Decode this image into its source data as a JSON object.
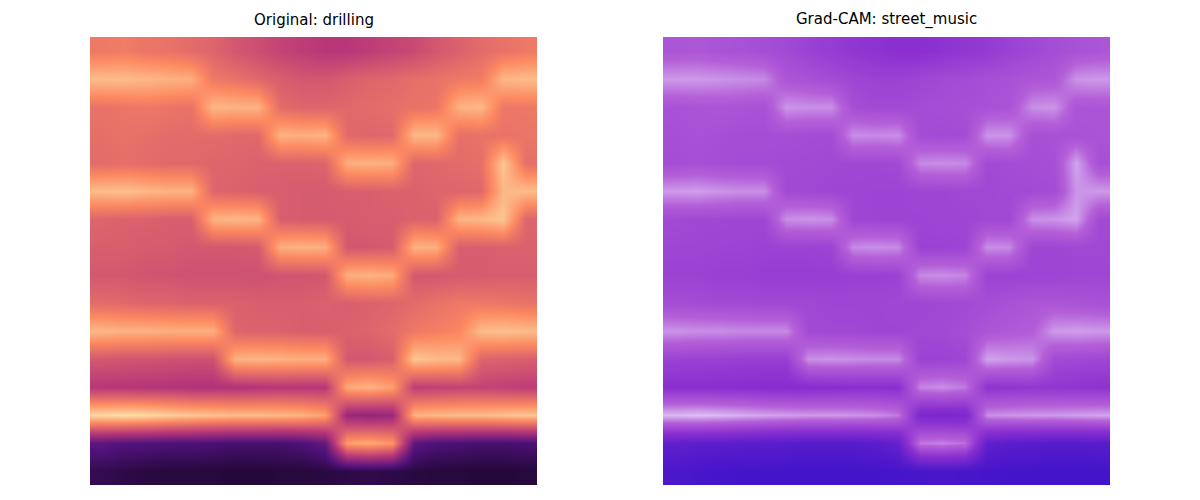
{
  "chart_data": [
    {
      "type": "heatmap",
      "title": "Original: drilling",
      "tick_labels": false,
      "zlim": [
        0,
        1
      ],
      "cells": [
        [
          0.7,
          0.71,
          0.69,
          0.68,
          0.66,
          0.64,
          0.6,
          0.57,
          0.54,
          0.52,
          0.5,
          0.5,
          0.52,
          0.54,
          0.56,
          0.6,
          0.63,
          0.66,
          0.68,
          0.7
        ],
        [
          0.86,
          0.86,
          0.85,
          0.84,
          0.83,
          0.7,
          0.68,
          0.65,
          0.62,
          0.6,
          0.6,
          0.62,
          0.64,
          0.65,
          0.67,
          0.68,
          0.7,
          0.71,
          0.85,
          0.86
        ],
        [
          0.68,
          0.69,
          0.7,
          0.69,
          0.68,
          0.85,
          0.84,
          0.84,
          0.66,
          0.64,
          0.64,
          0.65,
          0.66,
          0.67,
          0.68,
          0.69,
          0.84,
          0.85,
          0.7,
          0.7
        ],
        [
          0.67,
          0.68,
          0.67,
          0.66,
          0.66,
          0.66,
          0.65,
          0.65,
          0.84,
          0.83,
          0.84,
          0.65,
          0.64,
          0.65,
          0.85,
          0.85,
          0.67,
          0.68,
          0.68,
          0.69
        ],
        [
          0.66,
          0.67,
          0.66,
          0.65,
          0.65,
          0.64,
          0.64,
          0.63,
          0.63,
          0.63,
          0.64,
          0.83,
          0.84,
          0.83,
          0.64,
          0.65,
          0.66,
          0.67,
          0.88,
          0.67
        ],
        [
          0.86,
          0.87,
          0.85,
          0.84,
          0.84,
          0.64,
          0.63,
          0.62,
          0.62,
          0.61,
          0.61,
          0.62,
          0.62,
          0.63,
          0.63,
          0.64,
          0.64,
          0.65,
          0.85,
          0.86
        ],
        [
          0.64,
          0.63,
          0.63,
          0.62,
          0.62,
          0.84,
          0.85,
          0.84,
          0.62,
          0.61,
          0.61,
          0.61,
          0.62,
          0.62,
          0.63,
          0.63,
          0.84,
          0.85,
          0.88,
          0.64
        ],
        [
          0.62,
          0.62,
          0.61,
          0.61,
          0.6,
          0.6,
          0.6,
          0.61,
          0.83,
          0.84,
          0.83,
          0.6,
          0.6,
          0.61,
          0.84,
          0.83,
          0.62,
          0.62,
          0.63,
          0.63
        ],
        [
          0.6,
          0.6,
          0.59,
          0.59,
          0.58,
          0.58,
          0.58,
          0.58,
          0.59,
          0.59,
          0.6,
          0.83,
          0.84,
          0.82,
          0.6,
          0.6,
          0.61,
          0.61,
          0.62,
          0.62
        ],
        [
          0.66,
          0.65,
          0.64,
          0.64,
          0.63,
          0.63,
          0.63,
          0.62,
          0.62,
          0.62,
          0.63,
          0.62,
          0.63,
          0.64,
          0.66,
          0.68,
          0.7,
          0.7,
          0.69,
          0.68
        ],
        [
          0.85,
          0.84,
          0.84,
          0.83,
          0.83,
          0.83,
          0.64,
          0.63,
          0.63,
          0.62,
          0.62,
          0.63,
          0.64,
          0.66,
          0.7,
          0.72,
          0.74,
          0.86,
          0.87,
          0.86
        ],
        [
          0.6,
          0.59,
          0.59,
          0.58,
          0.58,
          0.58,
          0.84,
          0.85,
          0.84,
          0.83,
          0.83,
          0.6,
          0.6,
          0.62,
          0.88,
          0.86,
          0.85,
          0.64,
          0.63,
          0.62
        ],
        [
          0.5,
          0.5,
          0.49,
          0.49,
          0.48,
          0.48,
          0.48,
          0.49,
          0.5,
          0.5,
          0.5,
          0.82,
          0.84,
          0.8,
          0.52,
          0.53,
          0.54,
          0.54,
          0.53,
          0.52
        ],
        [
          0.92,
          0.93,
          0.92,
          0.9,
          0.88,
          0.87,
          0.86,
          0.86,
          0.85,
          0.84,
          0.8,
          0.42,
          0.4,
          0.42,
          0.84,
          0.85,
          0.86,
          0.86,
          0.87,
          0.88
        ],
        [
          0.28,
          0.26,
          0.25,
          0.24,
          0.24,
          0.23,
          0.22,
          0.22,
          0.22,
          0.24,
          0.3,
          0.8,
          0.82,
          0.78,
          0.28,
          0.24,
          0.23,
          0.22,
          0.22,
          0.23
        ],
        [
          0.16,
          0.14,
          0.13,
          0.12,
          0.12,
          0.12,
          0.11,
          0.11,
          0.12,
          0.12,
          0.13,
          0.14,
          0.15,
          0.14,
          0.13,
          0.12,
          0.12,
          0.11,
          0.11,
          0.12
        ]
      ]
    },
    {
      "type": "heatmap",
      "title": "Grad-CAM: street_music",
      "tick_labels": false,
      "zlim": [
        0,
        1
      ],
      "cells": [
        [
          0.7,
          0.71,
          0.69,
          0.68,
          0.66,
          0.64,
          0.6,
          0.57,
          0.54,
          0.52,
          0.5,
          0.5,
          0.52,
          0.54,
          0.56,
          0.6,
          0.63,
          0.66,
          0.68,
          0.7
        ],
        [
          0.86,
          0.86,
          0.85,
          0.84,
          0.83,
          0.7,
          0.68,
          0.65,
          0.62,
          0.6,
          0.6,
          0.62,
          0.64,
          0.65,
          0.67,
          0.68,
          0.7,
          0.71,
          0.85,
          0.86
        ],
        [
          0.68,
          0.69,
          0.7,
          0.69,
          0.68,
          0.85,
          0.84,
          0.84,
          0.66,
          0.64,
          0.64,
          0.65,
          0.66,
          0.67,
          0.68,
          0.69,
          0.84,
          0.85,
          0.7,
          0.7
        ],
        [
          0.67,
          0.68,
          0.67,
          0.66,
          0.66,
          0.66,
          0.65,
          0.65,
          0.84,
          0.83,
          0.84,
          0.65,
          0.64,
          0.65,
          0.85,
          0.85,
          0.67,
          0.68,
          0.68,
          0.69
        ],
        [
          0.66,
          0.67,
          0.66,
          0.65,
          0.65,
          0.64,
          0.64,
          0.63,
          0.63,
          0.63,
          0.64,
          0.83,
          0.84,
          0.83,
          0.64,
          0.65,
          0.66,
          0.67,
          0.88,
          0.67
        ],
        [
          0.86,
          0.87,
          0.85,
          0.84,
          0.84,
          0.64,
          0.63,
          0.62,
          0.62,
          0.61,
          0.61,
          0.62,
          0.62,
          0.63,
          0.63,
          0.64,
          0.64,
          0.65,
          0.85,
          0.86
        ],
        [
          0.64,
          0.63,
          0.63,
          0.62,
          0.62,
          0.84,
          0.85,
          0.84,
          0.62,
          0.61,
          0.61,
          0.61,
          0.62,
          0.62,
          0.63,
          0.63,
          0.84,
          0.85,
          0.88,
          0.64
        ],
        [
          0.62,
          0.62,
          0.61,
          0.61,
          0.6,
          0.6,
          0.6,
          0.61,
          0.83,
          0.84,
          0.83,
          0.6,
          0.6,
          0.61,
          0.84,
          0.83,
          0.62,
          0.62,
          0.63,
          0.63
        ],
        [
          0.6,
          0.6,
          0.59,
          0.59,
          0.58,
          0.58,
          0.58,
          0.58,
          0.59,
          0.59,
          0.6,
          0.83,
          0.84,
          0.82,
          0.6,
          0.6,
          0.61,
          0.61,
          0.62,
          0.62
        ],
        [
          0.66,
          0.65,
          0.64,
          0.64,
          0.63,
          0.63,
          0.63,
          0.62,
          0.62,
          0.62,
          0.63,
          0.62,
          0.63,
          0.64,
          0.66,
          0.68,
          0.7,
          0.7,
          0.69,
          0.68
        ],
        [
          0.85,
          0.84,
          0.84,
          0.83,
          0.83,
          0.83,
          0.64,
          0.63,
          0.63,
          0.62,
          0.62,
          0.63,
          0.64,
          0.66,
          0.7,
          0.72,
          0.74,
          0.86,
          0.87,
          0.86
        ],
        [
          0.6,
          0.59,
          0.59,
          0.58,
          0.58,
          0.58,
          0.84,
          0.85,
          0.84,
          0.83,
          0.83,
          0.6,
          0.6,
          0.62,
          0.88,
          0.86,
          0.85,
          0.64,
          0.63,
          0.62
        ],
        [
          0.5,
          0.5,
          0.49,
          0.49,
          0.48,
          0.48,
          0.48,
          0.49,
          0.5,
          0.5,
          0.5,
          0.82,
          0.84,
          0.8,
          0.52,
          0.53,
          0.54,
          0.54,
          0.53,
          0.52
        ],
        [
          0.92,
          0.93,
          0.92,
          0.9,
          0.88,
          0.87,
          0.86,
          0.86,
          0.85,
          0.84,
          0.8,
          0.42,
          0.4,
          0.42,
          0.84,
          0.85,
          0.86,
          0.86,
          0.87,
          0.88
        ],
        [
          0.28,
          0.26,
          0.25,
          0.24,
          0.24,
          0.23,
          0.22,
          0.22,
          0.22,
          0.24,
          0.3,
          0.8,
          0.82,
          0.78,
          0.28,
          0.24,
          0.23,
          0.22,
          0.22,
          0.23
        ],
        [
          0.16,
          0.14,
          0.13,
          0.12,
          0.12,
          0.12,
          0.11,
          0.11,
          0.12,
          0.12,
          0.13,
          0.14,
          0.15,
          0.14,
          0.13,
          0.12,
          0.12,
          0.11,
          0.11,
          0.12
        ]
      ]
    }
  ]
}
